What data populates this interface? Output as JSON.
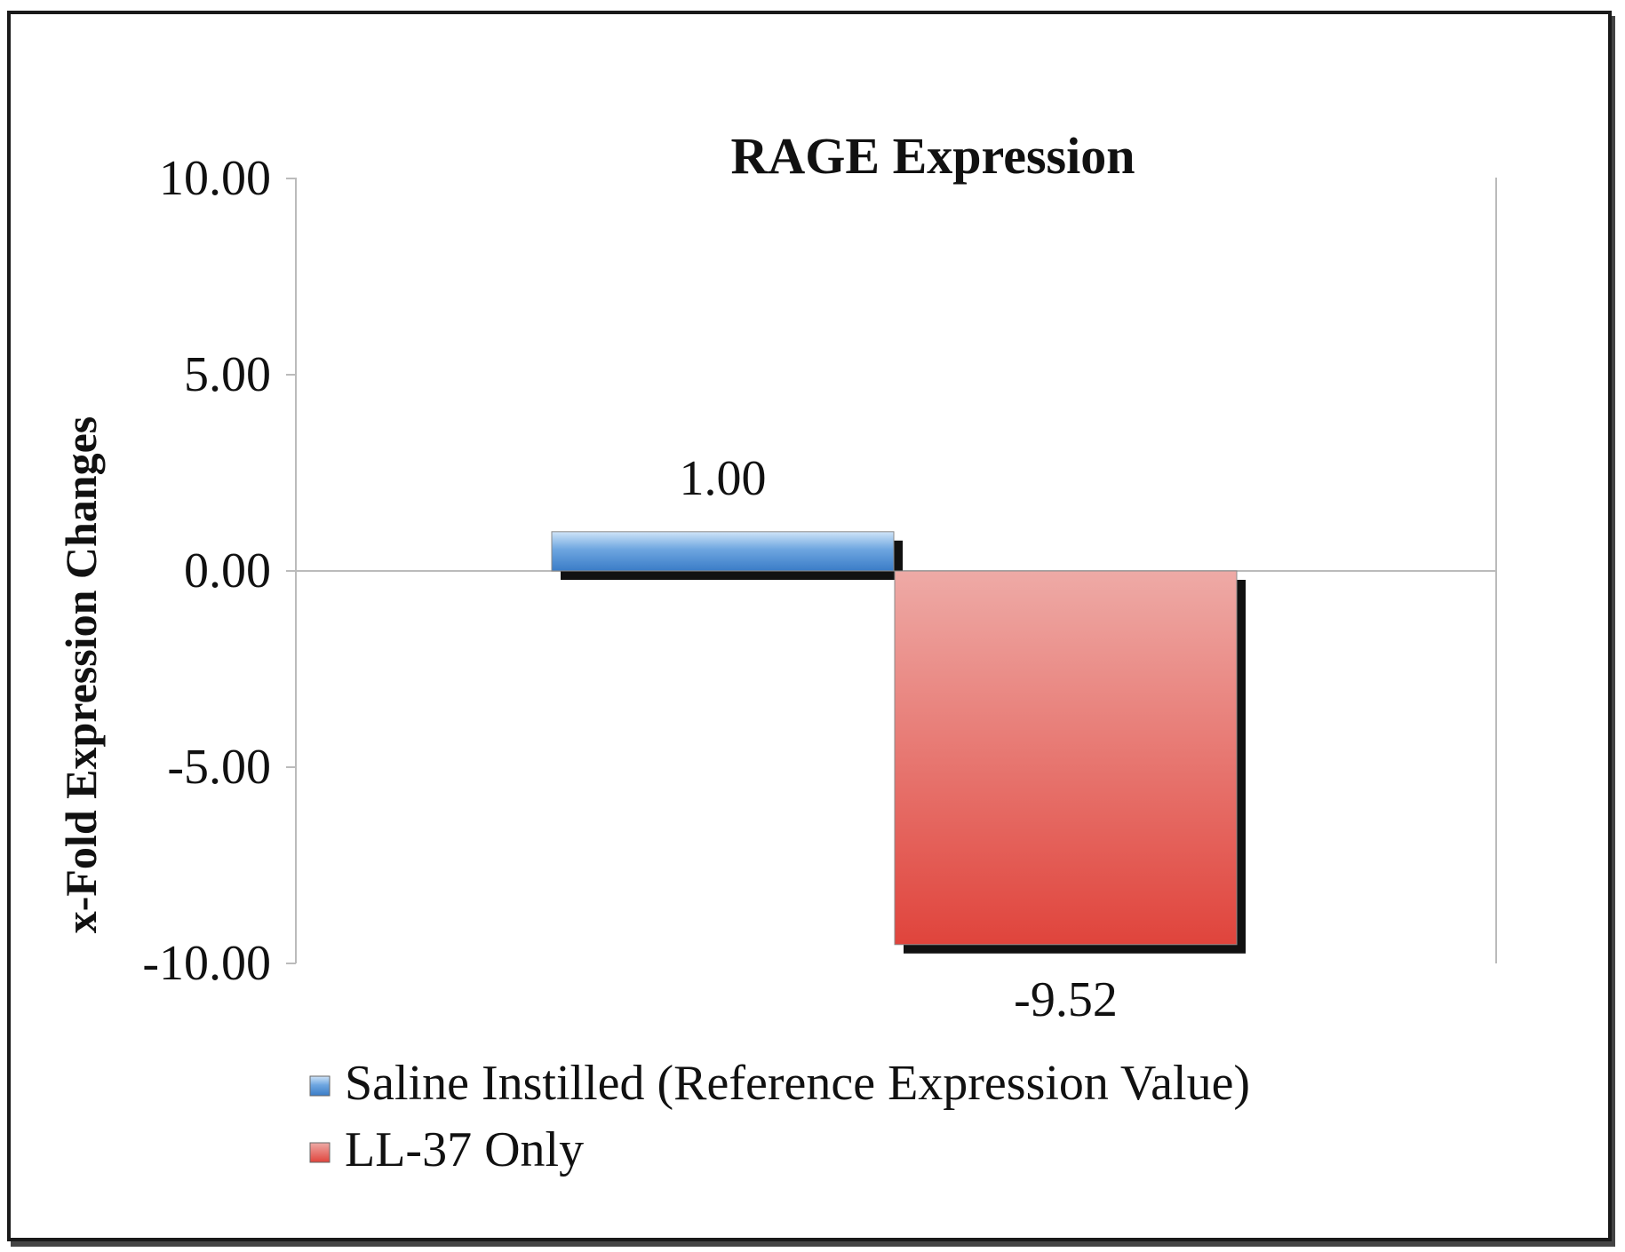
{
  "chart_data": {
    "type": "bar",
    "title": "RAGE Expression",
    "xlabel": "",
    "ylabel": "x-Fold Expression Changes",
    "ylim": [
      -10,
      10
    ],
    "yticks": [
      10,
      5,
      0,
      -5,
      -10
    ],
    "ytick_labels": [
      "10.00",
      "5.00",
      "0.00",
      "-5.00",
      "-10.00"
    ],
    "grid": false,
    "legend_position": "bottom-left",
    "series": [
      {
        "name": "Saline Instilled (Reference Expression Value)",
        "value": 1.0,
        "label": "1.00",
        "color": "#4a8fd4"
      },
      {
        "name": "LL-37 Only",
        "value": -9.52,
        "label": "-9.52",
        "color": "#e0504a"
      }
    ]
  }
}
